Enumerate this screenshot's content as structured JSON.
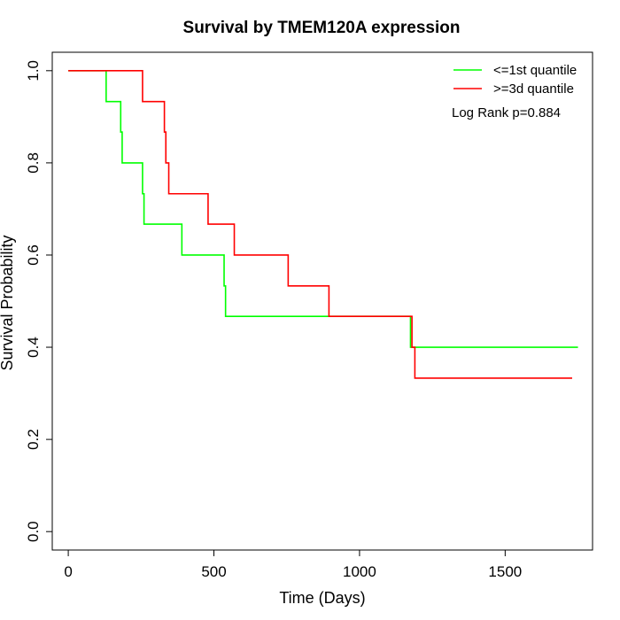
{
  "chart_data": {
    "type": "line",
    "title": "Survival by TMEM120A expression",
    "xlabel": "Time (Days)",
    "ylabel": "Survival Probability",
    "xlim": [
      -55,
      1800
    ],
    "ylim": [
      -0.04,
      1.04
    ],
    "xticks": [
      0,
      500,
      1000,
      1500
    ],
    "xtick_labels": [
      "0",
      "500",
      "1000",
      "1500"
    ],
    "yticks": [
      0.0,
      0.2,
      0.4,
      0.6,
      0.8,
      1.0
    ],
    "ytick_labels": [
      "0.0",
      "0.2",
      "0.4",
      "0.6",
      "0.8",
      "1.0"
    ],
    "grid": false,
    "legend_position": "top-right",
    "annotation": "Log Rank p=0.884",
    "series": [
      {
        "name": "<=1st quantile",
        "color": "#00ff00",
        "step": true,
        "x": [
          0,
          130,
          180,
          185,
          255,
          260,
          390,
          535,
          540,
          1175,
          1750
        ],
        "y": [
          1.0,
          0.933,
          0.867,
          0.8,
          0.733,
          0.667,
          0.6,
          0.533,
          0.467,
          0.4,
          0.4
        ]
      },
      {
        "name": ">=3d quantile",
        "color": "#ff0000",
        "step": true,
        "x": [
          0,
          255,
          330,
          335,
          345,
          480,
          570,
          755,
          895,
          1180,
          1190,
          1730
        ],
        "y": [
          1.0,
          0.933,
          0.867,
          0.8,
          0.733,
          0.667,
          0.6,
          0.533,
          0.467,
          0.4,
          0.333,
          0.333
        ]
      }
    ]
  }
}
